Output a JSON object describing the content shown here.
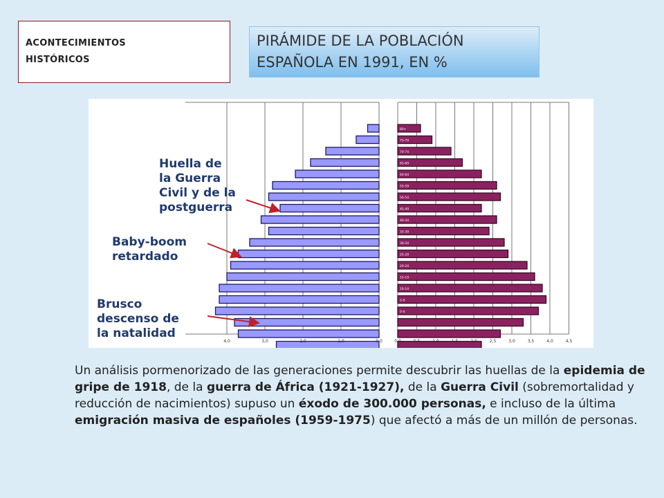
{
  "events_box": {
    "line1": "ACONTECIMIENTOS",
    "line2": "HISTÓRICOS"
  },
  "title_box": {
    "line1": "PIRÁMIDE DE LA POBLACIÓN",
    "line2": "ESPAÑOLA EN 1991, EN %"
  },
  "annotations": {
    "guerra": [
      "Huella de",
      "la Guerra",
      "Civil y de la",
      "postguerra"
    ],
    "baby": [
      "Baby-boom",
      "retardado"
    ],
    "brusco": [
      "Brusco",
      "descenso de",
      "la natalidad"
    ]
  },
  "description": {
    "p1": "Un análisis pormenorizado de las generaciones permite descubrir las huellas de la",
    "b1": "epidemia de gripe de 1918",
    "p2": ", de la ",
    "b2": "guerra de África (1921-1927),",
    "p3": " de la ",
    "b3": "Guerra Civil",
    "p4": "(sobremortalidad y reducción de nacimientos) supuso un ",
    "b4": "éxodo de 300.000 personas,",
    "p5": "  e incluso de la última ",
    "b5": "emigración masiva de españoles (1959-1975",
    "p6": ") que afectó a más de un millón de personas."
  },
  "chart_data": {
    "type": "bar",
    "title": "PIRÁMIDE DE LA POBLACIÓN ESPAÑOLA EN 1991, EN %",
    "xlim": [
      0,
      4.5
    ],
    "series": [
      {
        "name": "",
        "color": "#9999ff",
        "values": [
          0.3,
          0.6,
          1.4,
          1.8,
          2.2,
          2.8,
          2.9,
          2.6,
          3.1,
          2.9,
          3.4,
          3.7,
          3.9,
          4.0,
          4.2,
          4.2,
          4.3,
          3.8,
          3.7,
          2.7
        ]
      },
      {
        "name": "",
        "color": "#8b2260",
        "values": [
          0.6,
          0.9,
          1.4,
          1.7,
          2.2,
          2.6,
          2.7,
          2.2,
          2.6,
          2.4,
          2.8,
          2.9,
          3.4,
          3.6,
          3.8,
          3.9,
          3.7,
          3.3,
          2.7,
          2.2
        ]
      }
    ],
    "y_tick_labels": [
      "80+",
      "75-79",
      "70-74",
      "65-69",
      "60-64",
      "55-59",
      "50-54",
      "45-49",
      "40-44",
      "35-39",
      "30-34",
      "25-29",
      "20-24",
      "15-19",
      "10-14",
      "5-9",
      "0-4",
      "",
      "",
      ""
    ],
    "x_tick_labels_left": [
      "4,0",
      "3,0",
      "2,0",
      "1,0",
      "0,0"
    ],
    "x_tick_labels_right": [
      "0,0",
      "0,5",
      "1,0",
      "1,5",
      "2,0",
      "2,5",
      "3,0",
      "3,5",
      "4,0",
      "4,5"
    ],
    "grid": true
  }
}
